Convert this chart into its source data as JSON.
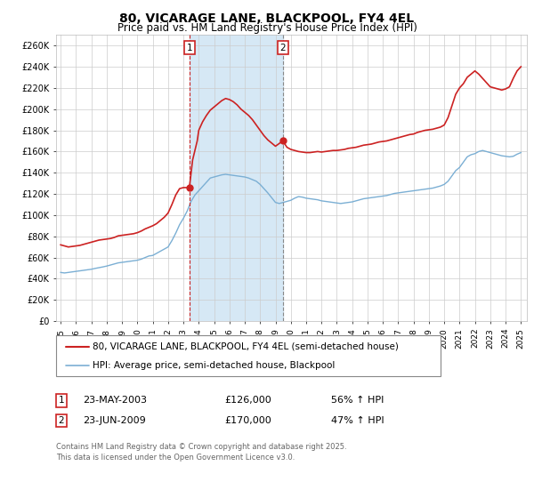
{
  "title": "80, VICARAGE LANE, BLACKPOOL, FY4 4EL",
  "subtitle": "Price paid vs. HM Land Registry's House Price Index (HPI)",
  "hpi_color": "#7bafd4",
  "property_color": "#cc2222",
  "shaded_color": "#d6e8f5",
  "background_color": "#ffffff",
  "grid_color": "#cccccc",
  "ylim": [
    0,
    270000
  ],
  "yticks": [
    0,
    20000,
    40000,
    60000,
    80000,
    100000,
    120000,
    140000,
    160000,
    180000,
    200000,
    220000,
    240000,
    260000
  ],
  "ytick_labels": [
    "£0",
    "£20K",
    "£40K",
    "£60K",
    "£80K",
    "£100K",
    "£120K",
    "£140K",
    "£160K",
    "£180K",
    "£200K",
    "£220K",
    "£240K",
    "£260K"
  ],
  "sale1_date": 2003.39,
  "sale1_price": 126000,
  "sale1_label": "1",
  "sale1_text": "23-MAY-2003",
  "sale1_amount": "£126,000",
  "sale1_hpi": "56% ↑ HPI",
  "sale2_date": 2009.48,
  "sale2_price": 170000,
  "sale2_label": "2",
  "sale2_text": "23-JUN-2009",
  "sale2_amount": "£170,000",
  "sale2_hpi": "47% ↑ HPI",
  "legend_line1": "80, VICARAGE LANE, BLACKPOOL, FY4 4EL (semi-detached house)",
  "legend_line2": "HPI: Average price, semi-detached house, Blackpool",
  "footnote": "Contains HM Land Registry data © Crown copyright and database right 2025.\nThis data is licensed under the Open Government Licence v3.0.",
  "hpi_data": [
    [
      1995.0,
      46000
    ],
    [
      1995.25,
      45500
    ],
    [
      1995.5,
      46000
    ],
    [
      1995.75,
      46500
    ],
    [
      1996.0,
      47000
    ],
    [
      1996.25,
      47500
    ],
    [
      1996.5,
      48000
    ],
    [
      1996.75,
      48500
    ],
    [
      1997.0,
      49000
    ],
    [
      1997.25,
      49800
    ],
    [
      1997.5,
      50500
    ],
    [
      1997.75,
      51200
    ],
    [
      1998.0,
      52000
    ],
    [
      1998.25,
      53000
    ],
    [
      1998.5,
      54000
    ],
    [
      1998.75,
      55000
    ],
    [
      1999.0,
      55500
    ],
    [
      1999.25,
      56000
    ],
    [
      1999.5,
      56500
    ],
    [
      1999.75,
      57000
    ],
    [
      2000.0,
      57500
    ],
    [
      2000.25,
      58500
    ],
    [
      2000.5,
      60000
    ],
    [
      2000.75,
      61500
    ],
    [
      2001.0,
      62000
    ],
    [
      2001.25,
      64000
    ],
    [
      2001.5,
      66000
    ],
    [
      2001.75,
      68000
    ],
    [
      2002.0,
      70000
    ],
    [
      2002.25,
      76000
    ],
    [
      2002.5,
      83000
    ],
    [
      2002.75,
      91000
    ],
    [
      2003.0,
      97000
    ],
    [
      2003.25,
      104000
    ],
    [
      2003.5,
      113000
    ],
    [
      2003.75,
      119000
    ],
    [
      2004.0,
      123000
    ],
    [
      2004.25,
      127000
    ],
    [
      2004.5,
      131000
    ],
    [
      2004.75,
      135000
    ],
    [
      2005.0,
      136000
    ],
    [
      2005.25,
      137000
    ],
    [
      2005.5,
      138000
    ],
    [
      2005.75,
      138500
    ],
    [
      2006.0,
      138000
    ],
    [
      2006.25,
      137500
    ],
    [
      2006.5,
      137000
    ],
    [
      2006.75,
      136500
    ],
    [
      2007.0,
      136000
    ],
    [
      2007.25,
      135000
    ],
    [
      2007.5,
      133500
    ],
    [
      2007.75,
      132000
    ],
    [
      2008.0,
      129000
    ],
    [
      2008.25,
      125000
    ],
    [
      2008.5,
      121000
    ],
    [
      2008.75,
      116500
    ],
    [
      2009.0,
      112000
    ],
    [
      2009.25,
      111000
    ],
    [
      2009.5,
      112000
    ],
    [
      2009.75,
      113000
    ],
    [
      2010.0,
      114000
    ],
    [
      2010.25,
      116000
    ],
    [
      2010.5,
      117500
    ],
    [
      2010.75,
      117000
    ],
    [
      2011.0,
      116000
    ],
    [
      2011.25,
      115500
    ],
    [
      2011.5,
      115000
    ],
    [
      2011.75,
      114500
    ],
    [
      2012.0,
      113500
    ],
    [
      2012.25,
      113000
    ],
    [
      2012.5,
      112500
    ],
    [
      2012.75,
      112000
    ],
    [
      2013.0,
      111500
    ],
    [
      2013.25,
      111000
    ],
    [
      2013.5,
      111500
    ],
    [
      2013.75,
      112000
    ],
    [
      2014.0,
      112500
    ],
    [
      2014.25,
      113500
    ],
    [
      2014.5,
      114500
    ],
    [
      2014.75,
      115500
    ],
    [
      2015.0,
      116000
    ],
    [
      2015.25,
      116500
    ],
    [
      2015.5,
      117000
    ],
    [
      2015.75,
      117500
    ],
    [
      2016.0,
      118000
    ],
    [
      2016.25,
      118500
    ],
    [
      2016.5,
      119500
    ],
    [
      2016.75,
      120500
    ],
    [
      2017.0,
      121000
    ],
    [
      2017.25,
      121500
    ],
    [
      2017.5,
      122000
    ],
    [
      2017.75,
      122500
    ],
    [
      2018.0,
      123000
    ],
    [
      2018.25,
      123500
    ],
    [
      2018.5,
      124000
    ],
    [
      2018.75,
      124500
    ],
    [
      2019.0,
      125000
    ],
    [
      2019.25,
      125500
    ],
    [
      2019.5,
      126500
    ],
    [
      2019.75,
      127500
    ],
    [
      2020.0,
      129000
    ],
    [
      2020.25,
      132000
    ],
    [
      2020.5,
      137000
    ],
    [
      2020.75,
      142000
    ],
    [
      2021.0,
      145000
    ],
    [
      2021.25,
      150000
    ],
    [
      2021.5,
      155000
    ],
    [
      2021.75,
      157000
    ],
    [
      2022.0,
      158000
    ],
    [
      2022.25,
      160000
    ],
    [
      2022.5,
      161000
    ],
    [
      2022.75,
      160000
    ],
    [
      2023.0,
      159000
    ],
    [
      2023.25,
      158000
    ],
    [
      2023.5,
      157000
    ],
    [
      2023.75,
      156000
    ],
    [
      2024.0,
      155500
    ],
    [
      2024.25,
      155000
    ],
    [
      2024.5,
      155500
    ],
    [
      2024.75,
      157500
    ],
    [
      2025.0,
      159000
    ]
  ],
  "property_data": [
    [
      1995.0,
      72000
    ],
    [
      1995.25,
      71000
    ],
    [
      1995.5,
      70000
    ],
    [
      1995.75,
      70500
    ],
    [
      1996.0,
      71000
    ],
    [
      1996.25,
      71500
    ],
    [
      1996.5,
      72500
    ],
    [
      1996.75,
      73500
    ],
    [
      1997.0,
      74500
    ],
    [
      1997.25,
      75500
    ],
    [
      1997.5,
      76500
    ],
    [
      1997.75,
      77000
    ],
    [
      1998.0,
      77500
    ],
    [
      1998.25,
      78000
    ],
    [
      1998.5,
      79000
    ],
    [
      1998.75,
      80500
    ],
    [
      1999.0,
      81000
    ],
    [
      1999.25,
      81500
    ],
    [
      1999.5,
      82000
    ],
    [
      1999.75,
      82500
    ],
    [
      2000.0,
      83500
    ],
    [
      2000.25,
      85000
    ],
    [
      2000.5,
      87000
    ],
    [
      2000.75,
      88500
    ],
    [
      2001.0,
      90000
    ],
    [
      2001.25,
      92000
    ],
    [
      2001.5,
      95000
    ],
    [
      2001.75,
      98000
    ],
    [
      2002.0,
      102000
    ],
    [
      2002.25,
      110000
    ],
    [
      2002.5,
      119000
    ],
    [
      2002.75,
      125000
    ],
    [
      2003.0,
      126000
    ],
    [
      2003.39,
      126000
    ],
    [
      2003.6,
      152000
    ],
    [
      2003.9,
      170000
    ],
    [
      2004.0,
      180000
    ],
    [
      2004.25,
      188000
    ],
    [
      2004.5,
      194000
    ],
    [
      2004.75,
      199000
    ],
    [
      2005.0,
      202000
    ],
    [
      2005.25,
      205000
    ],
    [
      2005.5,
      208000
    ],
    [
      2005.75,
      210000
    ],
    [
      2006.0,
      209000
    ],
    [
      2006.25,
      207000
    ],
    [
      2006.5,
      204000
    ],
    [
      2006.75,
      200000
    ],
    [
      2007.0,
      197000
    ],
    [
      2007.25,
      194000
    ],
    [
      2007.5,
      190000
    ],
    [
      2007.75,
      185000
    ],
    [
      2008.0,
      180000
    ],
    [
      2008.25,
      175000
    ],
    [
      2008.5,
      171000
    ],
    [
      2008.75,
      168000
    ],
    [
      2009.0,
      165000
    ],
    [
      2009.48,
      170000
    ],
    [
      2009.75,
      164000
    ],
    [
      2010.0,
      162000
    ],
    [
      2010.25,
      161000
    ],
    [
      2010.5,
      160000
    ],
    [
      2010.75,
      159500
    ],
    [
      2011.0,
      159000
    ],
    [
      2011.25,
      159000
    ],
    [
      2011.5,
      159500
    ],
    [
      2011.75,
      160000
    ],
    [
      2012.0,
      159500
    ],
    [
      2012.25,
      160000
    ],
    [
      2012.5,
      160500
    ],
    [
      2012.75,
      161000
    ],
    [
      2013.0,
      161000
    ],
    [
      2013.25,
      161500
    ],
    [
      2013.5,
      162000
    ],
    [
      2013.75,
      163000
    ],
    [
      2014.0,
      163500
    ],
    [
      2014.25,
      164000
    ],
    [
      2014.5,
      165000
    ],
    [
      2014.75,
      166000
    ],
    [
      2015.0,
      166500
    ],
    [
      2015.25,
      167000
    ],
    [
      2015.5,
      168000
    ],
    [
      2015.75,
      169000
    ],
    [
      2016.0,
      169500
    ],
    [
      2016.25,
      170000
    ],
    [
      2016.5,
      171000
    ],
    [
      2016.75,
      172000
    ],
    [
      2017.0,
      173000
    ],
    [
      2017.25,
      174000
    ],
    [
      2017.5,
      175000
    ],
    [
      2017.75,
      176000
    ],
    [
      2018.0,
      176500
    ],
    [
      2018.25,
      178000
    ],
    [
      2018.5,
      179000
    ],
    [
      2018.75,
      180000
    ],
    [
      2019.0,
      180500
    ],
    [
      2019.25,
      181000
    ],
    [
      2019.5,
      182000
    ],
    [
      2019.75,
      183000
    ],
    [
      2020.0,
      185000
    ],
    [
      2020.25,
      192000
    ],
    [
      2020.5,
      203000
    ],
    [
      2020.75,
      214000
    ],
    [
      2021.0,
      220000
    ],
    [
      2021.25,
      224000
    ],
    [
      2021.5,
      230000
    ],
    [
      2021.75,
      233000
    ],
    [
      2022.0,
      236000
    ],
    [
      2022.25,
      233000
    ],
    [
      2022.5,
      229000
    ],
    [
      2022.75,
      225000
    ],
    [
      2023.0,
      221000
    ],
    [
      2023.25,
      220000
    ],
    [
      2023.5,
      219000
    ],
    [
      2023.75,
      218000
    ],
    [
      2024.0,
      219000
    ],
    [
      2024.25,
      221000
    ],
    [
      2024.5,
      229000
    ],
    [
      2024.75,
      236000
    ],
    [
      2025.0,
      240000
    ]
  ]
}
